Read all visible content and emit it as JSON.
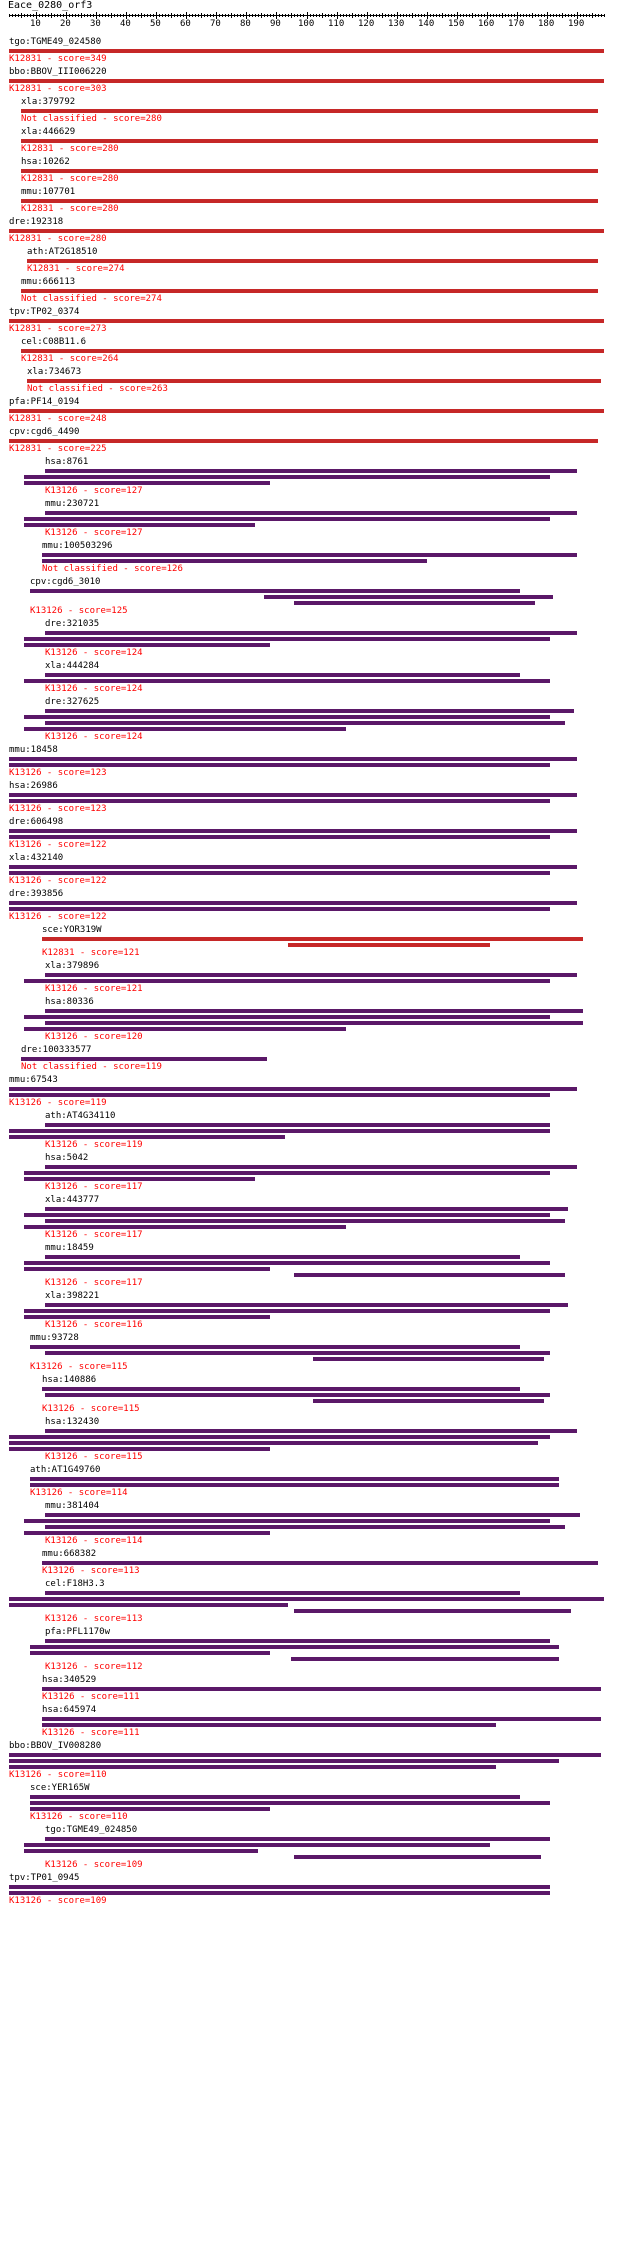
{
  "query": "Eace_0280_orf3",
  "ruler": {
    "ticks": [
      "10",
      "20",
      "30",
      "40",
      "50",
      "60",
      "70",
      "80",
      "90",
      "100",
      "110",
      "120",
      "130",
      "140",
      "150",
      "160",
      "170",
      "180",
      "190"
    ],
    "range": [
      1,
      199
    ]
  },
  "colors": {
    "red_bar": "#c62828",
    "purple_bar": "#5b1868",
    "score_text": "#ff0000",
    "gene_text": "#000000"
  },
  "hits": [
    {
      "gene": "tgo:TGME49_024580",
      "ko": "K12831 - score=349",
      "bars": [
        [
          1,
          199
        ]
      ]
    },
    {
      "gene": "bbo:BBOV_III006220",
      "ko": "K12831 - score=303",
      "bars": [
        [
          1,
          199
        ]
      ]
    },
    {
      "gene": "xla:379792",
      "ko": "Not classified - score=280",
      "bars": [
        [
          5,
          197
        ]
      ]
    },
    {
      "gene": "xla:446629",
      "ko": "K12831 - score=280",
      "bars": [
        [
          5,
          197
        ]
      ]
    },
    {
      "gene": "hsa:10262",
      "ko": "K12831 - score=280",
      "bars": [
        [
          5,
          197
        ]
      ]
    },
    {
      "gene": "mmu:107701",
      "ko": "K12831 - score=280",
      "bars": [
        [
          5,
          197
        ]
      ]
    },
    {
      "gene": "dre:192318",
      "ko": "K12831 - score=280",
      "bars": [
        [
          1,
          199
        ]
      ]
    },
    {
      "gene": "ath:AT2G18510",
      "ko": "K12831 - score=274",
      "bars": [
        [
          7,
          197
        ]
      ]
    },
    {
      "gene": "mmu:666113",
      "ko": "Not classified - score=274",
      "bars": [
        [
          5,
          197
        ]
      ]
    },
    {
      "gene": "tpv:TP02_0374",
      "ko": "K12831 - score=273",
      "bars": [
        [
          1,
          199
        ]
      ]
    },
    {
      "gene": "cel:C08B11.6",
      "ko": "K12831 - score=264",
      "bars": [
        [
          5,
          199
        ]
      ]
    },
    {
      "gene": "xla:734673",
      "ko": "Not classified - score=263",
      "bars": [
        [
          7,
          198
        ]
      ]
    },
    {
      "gene": "pfa:PF14_0194",
      "ko": "K12831 - score=248",
      "bars": [
        [
          1,
          199
        ]
      ]
    },
    {
      "gene": "cpv:cgd6_4490",
      "ko": "K12831 - score=225",
      "bars": [
        [
          1,
          197
        ]
      ]
    },
    {
      "gene": "hsa:8761",
      "ko": "K13126 - score=127",
      "bars": [
        [
          13,
          190
        ],
        [
          6,
          181
        ],
        [
          6,
          88
        ]
      ]
    },
    {
      "gene": "mmu:230721",
      "ko": "K13126 - score=127",
      "bars": [
        [
          13,
          190
        ],
        [
          6,
          181
        ],
        [
          6,
          83
        ]
      ]
    },
    {
      "gene": "mmu:100503296",
      "ko": "Not classified - score=126",
      "bars": [
        [
          12,
          190
        ],
        [
          12,
          140
        ]
      ]
    },
    {
      "gene": "cpv:cgd6_3010",
      "ko": "K13126 - score=125",
      "bars": [
        [
          8,
          171
        ],
        [
          86,
          182
        ],
        [
          96,
          176
        ]
      ]
    },
    {
      "gene": "dre:321035",
      "ko": "K13126 - score=124",
      "bars": [
        [
          13,
          190
        ],
        [
          6,
          181
        ],
        [
          6,
          88
        ]
      ]
    },
    {
      "gene": "xla:444284",
      "ko": "K13126 - score=124",
      "bars": [
        [
          13,
          171
        ],
        [
          6,
          181
        ]
      ]
    },
    {
      "gene": "dre:327625",
      "ko": "K13126 - score=124",
      "bars": [
        [
          13,
          189
        ],
        [
          6,
          181
        ],
        [
          13,
          186
        ],
        [
          6,
          113
        ]
      ]
    },
    {
      "gene": "mmu:18458",
      "ko": "K13126 - score=123",
      "bars": [
        [
          1,
          190
        ],
        [
          1,
          181
        ]
      ]
    },
    {
      "gene": "hsa:26986",
      "ko": "K13126 - score=123",
      "bars": [
        [
          1,
          190
        ],
        [
          1,
          181
        ]
      ]
    },
    {
      "gene": "dre:606498",
      "ko": "K13126 - score=122",
      "bars": [
        [
          1,
          190
        ],
        [
          1,
          181
        ]
      ]
    },
    {
      "gene": "xla:432140",
      "ko": "K13126 - score=122",
      "bars": [
        [
          1,
          190
        ],
        [
          1,
          181
        ]
      ]
    },
    {
      "gene": "dre:393856",
      "ko": "K13126 - score=122",
      "bars": [
        [
          1,
          190
        ],
        [
          1,
          181
        ]
      ]
    },
    {
      "gene": "sce:YOR319W",
      "ko": "K12831 - score=121",
      "bars": [
        [
          12,
          192
        ],
        [
          94,
          161
        ]
      ]
    },
    {
      "gene": "xla:379896",
      "ko": "K13126 - score=121",
      "bars": [
        [
          13,
          190
        ],
        [
          6,
          181
        ]
      ]
    },
    {
      "gene": "hsa:80336",
      "ko": "K13126 - score=120",
      "bars": [
        [
          13,
          192
        ],
        [
          6,
          181
        ],
        [
          13,
          192
        ],
        [
          6,
          113
        ]
      ]
    },
    {
      "gene": "dre:100333577",
      "ko": "Not classified - score=119",
      "bars": [
        [
          5,
          87
        ]
      ]
    },
    {
      "gene": "mmu:67543",
      "ko": "K13126 - score=119",
      "bars": [
        [
          1,
          190
        ],
        [
          1,
          181
        ]
      ]
    },
    {
      "gene": "ath:AT4G34110",
      "ko": "K13126 - score=119",
      "bars": [
        [
          13,
          181
        ],
        [
          1,
          181
        ],
        [
          1,
          93
        ]
      ]
    },
    {
      "gene": "hsa:5042",
      "ko": "K13126 - score=117",
      "bars": [
        [
          13,
          190
        ],
        [
          6,
          181
        ],
        [
          6,
          83
        ]
      ]
    },
    {
      "gene": "xla:443777",
      "ko": "K13126 - score=117",
      "bars": [
        [
          13,
          187
        ],
        [
          6,
          181
        ],
        [
          13,
          186
        ],
        [
          6,
          113
        ]
      ]
    },
    {
      "gene": "mmu:18459",
      "ko": "K13126 - score=117",
      "bars": [
        [
          13,
          171
        ],
        [
          6,
          181
        ],
        [
          6,
          88
        ],
        [
          96,
          186
        ]
      ]
    },
    {
      "gene": "xla:398221",
      "ko": "K13126 - score=116",
      "bars": [
        [
          13,
          187
        ],
        [
          6,
          181
        ],
        [
          6,
          88
        ]
      ]
    },
    {
      "gene": "mmu:93728",
      "ko": "K13126 - score=115",
      "bars": [
        [
          8,
          171
        ],
        [
          13,
          181
        ],
        [
          102,
          179
        ]
      ]
    },
    {
      "gene": "hsa:140886",
      "ko": "K13126 - score=115",
      "bars": [
        [
          12,
          171
        ],
        [
          13,
          181
        ],
        [
          102,
          179
        ]
      ]
    },
    {
      "gene": "hsa:132430",
      "ko": "K13126 - score=115",
      "bars": [
        [
          13,
          190
        ],
        [
          1,
          181
        ],
        [
          1,
          177
        ],
        [
          1,
          88
        ]
      ]
    },
    {
      "gene": "ath:AT1G49760",
      "ko": "K13126 - score=114",
      "bars": [
        [
          8,
          184
        ],
        [
          8,
          184
        ]
      ]
    },
    {
      "gene": "mmu:381404",
      "ko": "K13126 - score=114",
      "bars": [
        [
          13,
          191
        ],
        [
          6,
          181
        ],
        [
          13,
          186
        ],
        [
          6,
          88
        ]
      ]
    },
    {
      "gene": "mmu:668382",
      "ko": "K13126 - score=113",
      "bars": [
        [
          12,
          197
        ]
      ]
    },
    {
      "gene": "cel:F18H3.3",
      "ko": "K13126 - score=113",
      "bars": [
        [
          13,
          171
        ],
        [
          1,
          199
        ],
        [
          1,
          94
        ],
        [
          96,
          188
        ]
      ]
    },
    {
      "gene": "pfa:PFL1170w",
      "ko": "K13126 - score=112",
      "bars": [
        [
          13,
          181
        ],
        [
          8,
          184
        ],
        [
          8,
          88
        ],
        [
          95,
          184
        ]
      ]
    },
    {
      "gene": "hsa:340529",
      "ko": "K13126 - score=111",
      "bars": [
        [
          12,
          198
        ]
      ]
    },
    {
      "gene": "hsa:645974",
      "ko": "K13126 - score=111",
      "bars": [
        [
          12,
          198
        ],
        [
          12,
          163
        ]
      ]
    },
    {
      "gene": "bbo:BBOV_IV008280",
      "ko": "K13126 - score=110",
      "bars": [
        [
          1,
          198
        ],
        [
          1,
          184
        ],
        [
          1,
          163
        ]
      ]
    },
    {
      "gene": "sce:YER165W",
      "ko": "K13126 - score=110",
      "bars": [
        [
          8,
          171
        ],
        [
          8,
          181
        ],
        [
          8,
          88
        ]
      ]
    },
    {
      "gene": "tgo:TGME49_024850",
      "ko": "K13126 - score=109",
      "bars": [
        [
          13,
          181
        ],
        [
          6,
          161
        ],
        [
          6,
          84
        ],
        [
          96,
          178
        ]
      ]
    },
    {
      "gene": "tpv:TP01_0945",
      "ko": "K13126 - score=109",
      "bars": [
        [
          1,
          181
        ],
        [
          1,
          181
        ]
      ]
    }
  ]
}
